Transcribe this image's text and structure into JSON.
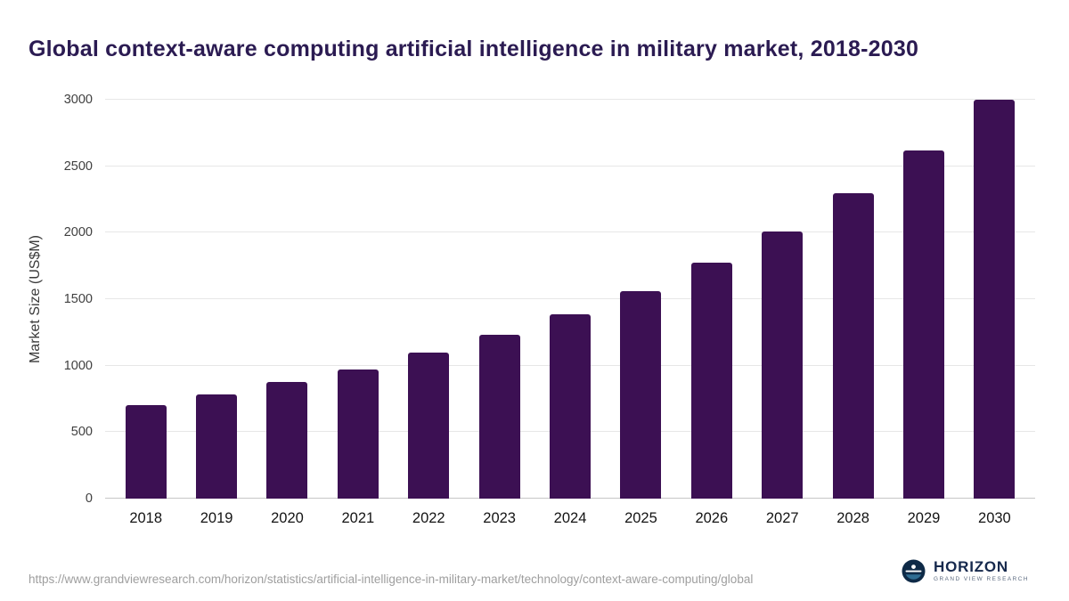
{
  "header": {
    "title": "Global context-aware computing artificial intelligence in military market, 2018-2030"
  },
  "chart_data": {
    "type": "bar",
    "title": "Global context-aware computing artificial intelligence in military market, 2018-2030",
    "categories": [
      "2018",
      "2019",
      "2020",
      "2021",
      "2022",
      "2023",
      "2024",
      "2025",
      "2026",
      "2027",
      "2028",
      "2029",
      "2030"
    ],
    "values": [
      700,
      785,
      875,
      970,
      1095,
      1230,
      1385,
      1560,
      1775,
      2010,
      2295,
      2620,
      3000
    ],
    "xlabel": "",
    "ylabel": "Market Size (US$M)",
    "ylim": [
      0,
      3000
    ],
    "yticks": [
      0,
      500,
      1000,
      1500,
      2000,
      2500,
      3000
    ],
    "grid": true,
    "legend": "none",
    "bar_color": "#3c1053"
  },
  "footer": {
    "source_url": "https://www.grandviewresearch.com/horizon/statistics/artificial-intelligence-in-military-market/technology/context-aware-computing/global",
    "logo_name": "HORIZON",
    "logo_subtext": "GRAND VIEW RESEARCH",
    "logo_icon": "horizon-circle-icon"
  },
  "colors": {
    "title_text": "#2b1b52",
    "bar": "#3c1053",
    "gridline": "#e7e7e7",
    "axis_text": "#404040",
    "source_text": "#9e9e9e",
    "logo_navy": "#16294d"
  }
}
